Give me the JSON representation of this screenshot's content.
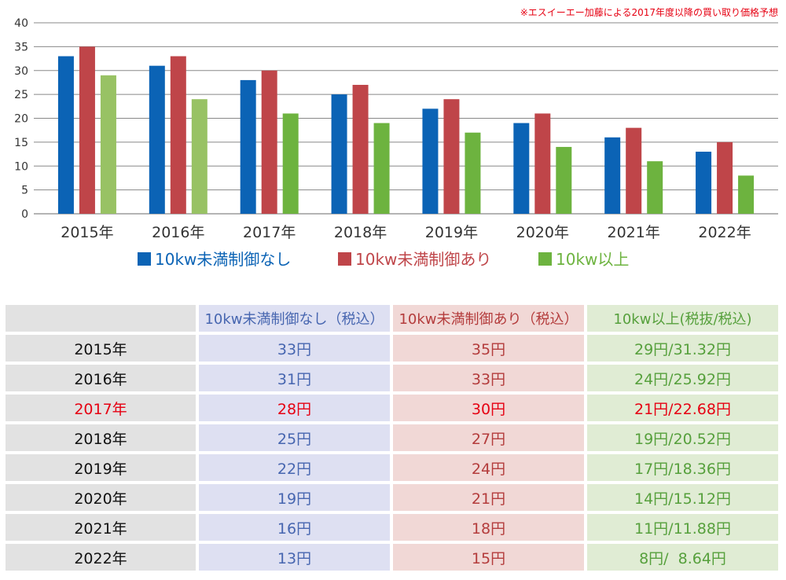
{
  "note": "※エスイーエー加藤による2017年度以降の買い取り価格予想",
  "colors": {
    "series1": "#0b63b5",
    "series2": "#bf4549",
    "series3": "#6db33f",
    "series3_light": "#98c264",
    "grid": "#888888",
    "highlight": "#e60012"
  },
  "chart_data": {
    "type": "bar",
    "title": "",
    "xlabel": "",
    "ylabel": "",
    "ylim": [
      0,
      40
    ],
    "yticks": [
      "0",
      "5",
      "10",
      "15",
      "20",
      "25",
      "30",
      "35",
      "40"
    ],
    "categories": [
      "2015年",
      "2016年",
      "2017年",
      "2018年",
      "2019年",
      "2020年",
      "2021年",
      "2022年"
    ],
    "series": [
      {
        "name": "10kw未満制御なし",
        "values": [
          33,
          31,
          28,
          25,
          22,
          19,
          16,
          13
        ]
      },
      {
        "name": "10kw未満制御あり",
        "values": [
          35,
          33,
          30,
          27,
          24,
          21,
          18,
          15
        ]
      },
      {
        "name": "10kw以上",
        "values": [
          29,
          24,
          21,
          19,
          17,
          14,
          11,
          8
        ]
      }
    ],
    "legend_position": "bottom-center"
  },
  "table": {
    "headers": [
      "",
      "10kw未満制御なし（税込）",
      "10kw未満制御あり（税込）",
      "10kw以上(税抜/税込)"
    ],
    "highlight_row": 2,
    "rows": [
      [
        "2015年",
        "33円",
        "35円",
        "29円/31.32円"
      ],
      [
        "2016年",
        "31円",
        "33円",
        "24円/25.92円"
      ],
      [
        "2017年",
        "28円",
        "30円",
        "21円/22.68円"
      ],
      [
        "2018年",
        "25円",
        "27円",
        "19円/20.52円"
      ],
      [
        "2019年",
        "22円",
        "24円",
        "17円/18.36円"
      ],
      [
        "2020年",
        "19円",
        "21円",
        "14円/15.12円"
      ],
      [
        "2021年",
        "16円",
        "18円",
        "11円/11.88円"
      ],
      [
        "2022年",
        "13円",
        "15円",
        "8円/  8.64円"
      ]
    ]
  }
}
